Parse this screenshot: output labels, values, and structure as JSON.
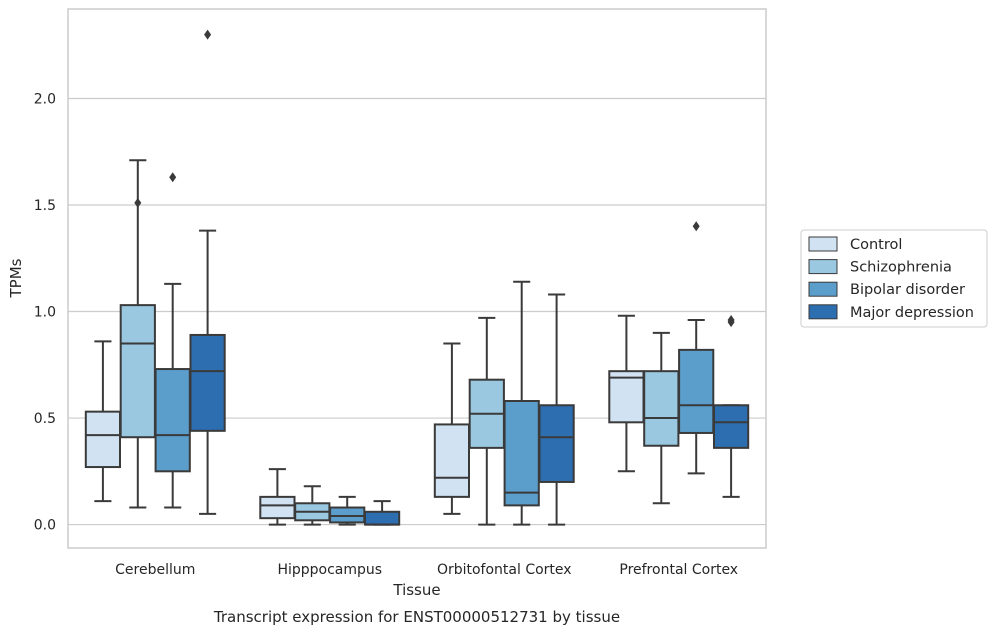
{
  "chart_data": {
    "type": "boxplot",
    "xlabel": "Tissue",
    "ylabel": "TPMs",
    "caption": "Transcript expression for ENST00000512731 by tissue",
    "categories": [
      "Cerebellum",
      "Hipppocampus",
      "Orbitofontal Cortex",
      "Prefrontal Cortex"
    ],
    "ylim": [
      -0.11,
      2.42
    ],
    "yticks": [
      0.0,
      0.5,
      1.0,
      1.5,
      2.0
    ],
    "ytick_labels": [
      "0.0",
      "0.5",
      "1.0",
      "1.5",
      "2.0"
    ],
    "grid": "horizontal",
    "legend_placement": "right, outside",
    "series": [
      {
        "name": "Control",
        "color": "#d1e2f2",
        "boxes": [
          {
            "whislo": 0.11,
            "q1": 0.27,
            "med": 0.42,
            "q3": 0.53,
            "whishi": 0.86,
            "fliers": []
          },
          {
            "whislo": 0.0,
            "q1": 0.03,
            "med": 0.09,
            "q3": 0.13,
            "whishi": 0.26,
            "fliers": []
          },
          {
            "whislo": 0.05,
            "q1": 0.13,
            "med": 0.22,
            "q3": 0.47,
            "whishi": 0.85,
            "fliers": []
          },
          {
            "whislo": 0.25,
            "q1": 0.48,
            "med": 0.69,
            "q3": 0.72,
            "whishi": 0.98,
            "fliers": []
          }
        ]
      },
      {
        "name": "Schizophrenia",
        "color": "#9ac8e0",
        "boxes": [
          {
            "whislo": 0.08,
            "q1": 0.41,
            "med": 0.85,
            "q3": 1.03,
            "whishi": 1.71,
            "fliers": [
              1.51
            ]
          },
          {
            "whislo": 0.0,
            "q1": 0.02,
            "med": 0.06,
            "q3": 0.1,
            "whishi": 0.18,
            "fliers": []
          },
          {
            "whislo": 0.0,
            "q1": 0.36,
            "med": 0.52,
            "q3": 0.68,
            "whishi": 0.97,
            "fliers": []
          },
          {
            "whislo": 0.1,
            "q1": 0.37,
            "med": 0.5,
            "q3": 0.72,
            "whishi": 0.9,
            "fliers": []
          }
        ]
      },
      {
        "name": "Bipolar disorder",
        "color": "#5b9dcb",
        "boxes": [
          {
            "whislo": 0.08,
            "q1": 0.25,
            "med": 0.42,
            "q3": 0.73,
            "whishi": 1.13,
            "fliers": [
              1.63
            ]
          },
          {
            "whislo": 0.0,
            "q1": 0.01,
            "med": 0.04,
            "q3": 0.08,
            "whishi": 0.13,
            "fliers": []
          },
          {
            "whislo": 0.0,
            "q1": 0.09,
            "med": 0.15,
            "q3": 0.58,
            "whishi": 1.14,
            "fliers": []
          },
          {
            "whislo": 0.24,
            "q1": 0.43,
            "med": 0.56,
            "q3": 0.82,
            "whishi": 0.96,
            "fliers": [
              1.4
            ]
          }
        ]
      },
      {
        "name": "Major depression",
        "color": "#2d6eb0",
        "boxes": [
          {
            "whislo": 0.05,
            "q1": 0.44,
            "med": 0.72,
            "q3": 0.89,
            "whishi": 1.38,
            "fliers": [
              2.3
            ]
          },
          {
            "whislo": 0.0,
            "q1": 0.0,
            "med": 0.0,
            "q3": 0.06,
            "whishi": 0.11,
            "fliers": []
          },
          {
            "whislo": 0.0,
            "q1": 0.2,
            "med": 0.41,
            "q3": 0.56,
            "whishi": 1.08,
            "fliers": []
          },
          {
            "whislo": 0.13,
            "q1": 0.36,
            "med": 0.48,
            "q3": 0.56,
            "whishi": 0.56,
            "fliers": [
              0.95,
              0.96
            ]
          }
        ]
      }
    ]
  },
  "colors": {
    "grid": "#cccccc",
    "frame": "#cccccc",
    "box_edge": "#3a3a3a"
  }
}
